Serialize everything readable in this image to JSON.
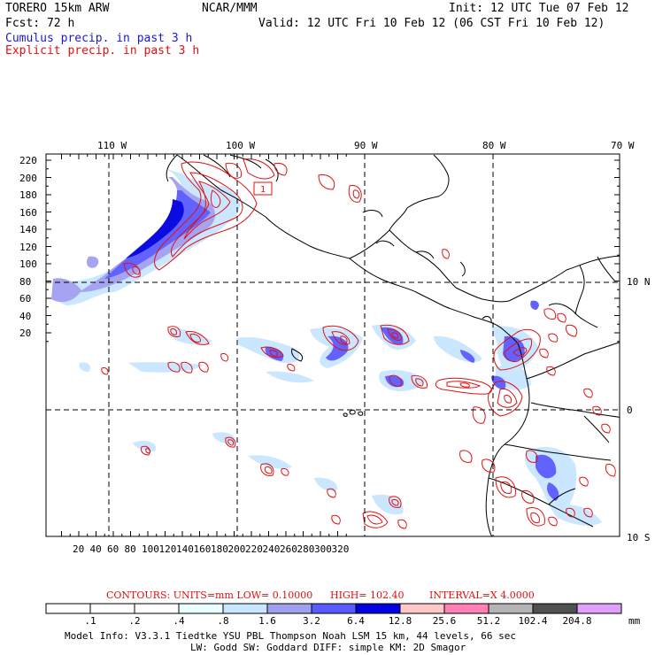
{
  "header": {
    "model": "TORERO  15km ARW",
    "org": "NCAR/MMM",
    "init": "Init: 12 UTC Tue 07 Feb 12",
    "fcst": "Fcst:   72 h",
    "valid": "Valid: 12 UTC Fri 10 Feb 12 (06 CST Fri 10 Feb 12)",
    "cumulus": "Cumulus precip. in past 3 h",
    "explicit": "Explicit precip. in past 3 h"
  },
  "colors": {
    "cumulus_text": "#1a1ad0",
    "explicit_text": "#e01010",
    "contour": "#e01010",
    "grid": "#000000"
  },
  "axes": {
    "lon_labels": [
      "110 W",
      "100 W",
      "90 W",
      "80 W",
      "70 W"
    ],
    "lat_labels": [
      "10 N",
      "0",
      "10 S"
    ],
    "y_ticks": [
      "220",
      "200",
      "180",
      "160",
      "140",
      "120",
      "100",
      "80",
      "60",
      "40",
      "20"
    ],
    "x_ticks": [
      "20",
      "40",
      "60",
      "80",
      "100",
      "120",
      "140",
      "160",
      "180",
      "200",
      "220",
      "240",
      "260",
      "280",
      "300",
      "320"
    ]
  },
  "contour_info": {
    "label": "CONTOURS:  UNITS=mm  LOW= 0.10000",
    "high": "HIGH=  102.40",
    "interval": "INTERVAL=X  4.0000"
  },
  "colorbar": {
    "unit": "mm",
    "labels": [
      ".1",
      ".2",
      ".4",
      ".8",
      "1.6",
      "3.2",
      "6.4",
      "12.8",
      "25.6",
      "51.2",
      "102.4",
      "204.8"
    ],
    "colors": [
      "#ffffff",
      "#ffffff",
      "#ffffff",
      "#eaffff",
      "#c8e6ff",
      "#a0a0f0",
      "#5a5aff",
      "#0000e0",
      "#ffc8c8",
      "#ff80b4",
      "#b4b4b4",
      "#505050",
      "#e0a0ff"
    ]
  },
  "footer": {
    "line1": "Model Info: V3.3.1    Tiedtke YSU PBL   Thompson     Noah LSM  15 km,    44 levels,    66 sec",
    "line2": "LW: Godd SW: Goddard DIFF: simple KM: 2D Smagor"
  }
}
